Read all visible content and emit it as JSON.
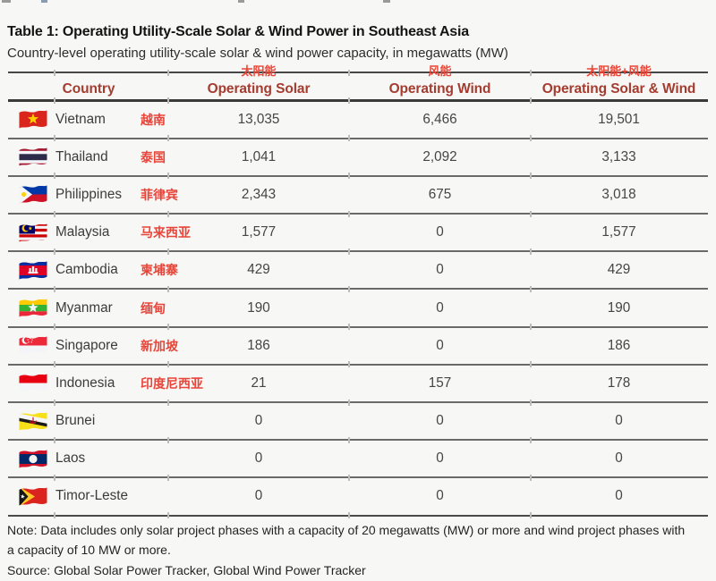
{
  "page": {
    "title": "Table 1: Operating Utility-Scale Solar & Wind Power in Southeast Asia",
    "subtitle": "Country-level operating utility-scale solar & wind power capacity, in megawatts (MW)",
    "note": "Note: Data includes only solar project phases with a capacity of 20 megawatts (MW) or more and wind project phases with a capacity of 10 MW or more.",
    "source": "Source: Global Solar Power Tracker, Global Wind Power Tracker"
  },
  "colors": {
    "page_background": "#f7f7f5",
    "header_label_red": "#a53c30",
    "chinese_annotation_red": "#e8453a",
    "body_text": "#3b3b3b",
    "rule_gray": "#4a4a4a"
  },
  "table": {
    "columns": [
      {
        "label": "Country",
        "annotation_cn": ""
      },
      {
        "label": "Operating Solar",
        "annotation_cn": "太阳能"
      },
      {
        "label": "Operating Wind",
        "annotation_cn": "风能"
      },
      {
        "label": "Operating Solar & Wind",
        "annotation_cn": "太阳能+风能"
      }
    ],
    "rows": [
      {
        "country": "Vietnam",
        "annotation_cn": "越南",
        "flag_icon": "vietnam-flag-icon",
        "operating_solar": "13,035",
        "operating_wind": "6,466",
        "operating_solar_wind": "19,501"
      },
      {
        "country": "Thailand",
        "annotation_cn": "泰国",
        "flag_icon": "thailand-flag-icon",
        "operating_solar": "1,041",
        "operating_wind": "2,092",
        "operating_solar_wind": "3,133"
      },
      {
        "country": "Philippines",
        "annotation_cn": "菲律宾",
        "flag_icon": "philippines-flag-icon",
        "operating_solar": "2,343",
        "operating_wind": "675",
        "operating_solar_wind": "3,018"
      },
      {
        "country": "Malaysia",
        "annotation_cn": "马来西亚",
        "flag_icon": "malaysia-flag-icon",
        "operating_solar": "1,577",
        "operating_wind": "0",
        "operating_solar_wind": "1,577"
      },
      {
        "country": "Cambodia",
        "annotation_cn": "柬埔寨",
        "flag_icon": "cambodia-flag-icon",
        "operating_solar": "429",
        "operating_wind": "0",
        "operating_solar_wind": "429"
      },
      {
        "country": "Myanmar",
        "annotation_cn": "缅甸",
        "flag_icon": "myanmar-flag-icon",
        "operating_solar": "190",
        "operating_wind": "0",
        "operating_solar_wind": "190"
      },
      {
        "country": "Singapore",
        "annotation_cn": "新加坡",
        "flag_icon": "singapore-flag-icon",
        "operating_solar": "186",
        "operating_wind": "0",
        "operating_solar_wind": "186"
      },
      {
        "country": "Indonesia",
        "annotation_cn": "印度尼西亚",
        "flag_icon": "indonesia-flag-icon",
        "operating_solar": "21",
        "operating_wind": "157",
        "operating_solar_wind": "178"
      },
      {
        "country": "Brunei",
        "annotation_cn": "",
        "flag_icon": "brunei-flag-icon",
        "operating_solar": "0",
        "operating_wind": "0",
        "operating_solar_wind": "0"
      },
      {
        "country": "Laos",
        "annotation_cn": "",
        "flag_icon": "laos-flag-icon",
        "operating_solar": "0",
        "operating_wind": "0",
        "operating_solar_wind": "0"
      },
      {
        "country": "Timor-Leste",
        "annotation_cn": "",
        "flag_icon": "timor-leste-flag-icon",
        "operating_solar": "0",
        "operating_wind": "0",
        "operating_solar_wind": "0"
      }
    ]
  },
  "chart_data": {
    "type": "table",
    "title": "Table 1: Operating Utility-Scale Solar & Wind Power in Southeast Asia",
    "columns": [
      "Country",
      "Operating Solar",
      "Operating Wind",
      "Operating Solar & Wind"
    ],
    "rows": [
      [
        "Vietnam",
        13035,
        6466,
        19501
      ],
      [
        "Thailand",
        1041,
        2092,
        3133
      ],
      [
        "Philippines",
        2343,
        675,
        3018
      ],
      [
        "Malaysia",
        1577,
        0,
        1577
      ],
      [
        "Cambodia",
        429,
        0,
        429
      ],
      [
        "Myanmar",
        190,
        0,
        190
      ],
      [
        "Singapore",
        186,
        0,
        186
      ],
      [
        "Indonesia",
        21,
        157,
        178
      ],
      [
        "Brunei",
        0,
        0,
        0
      ],
      [
        "Laos",
        0,
        0,
        0
      ],
      [
        "Timor-Leste",
        0,
        0,
        0
      ]
    ]
  }
}
